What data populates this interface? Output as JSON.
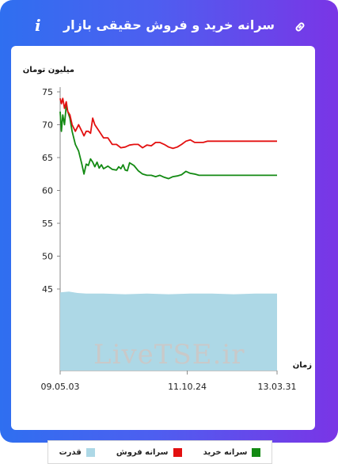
{
  "header": {
    "title": "سرانه خرید و فروش حقیقی بازار",
    "info_icon": "info-icon",
    "link_icon": "link-icon"
  },
  "watermark": "LiveTSE.ir",
  "chart_data": {
    "type": "line",
    "ylabel": "میلیون تومان",
    "xlabel": "زمان",
    "y_ticks": [
      45,
      50,
      55,
      60,
      65,
      70,
      75
    ],
    "x_ticks": [
      "09.05.03",
      "11.10.24",
      "13.03.31"
    ],
    "grid": false,
    "legend_position": "bottom",
    "series": [
      {
        "name": "سرانه خرید",
        "color": "#138a13",
        "points": [
          [
            0,
            72
          ],
          [
            0.6,
            69
          ],
          [
            1.2,
            71.5
          ],
          [
            2,
            70
          ],
          [
            2.8,
            73
          ],
          [
            3.5,
            72
          ],
          [
            4.5,
            71
          ],
          [
            5.5,
            69
          ],
          [
            7,
            67
          ],
          [
            8.5,
            66
          ],
          [
            10,
            64
          ],
          [
            11,
            62.5
          ],
          [
            12,
            64
          ],
          [
            13,
            63.8
          ],
          [
            14,
            64.8
          ],
          [
            15,
            64.3
          ],
          [
            16,
            63.6
          ],
          [
            17,
            64.3
          ],
          [
            18,
            63.4
          ],
          [
            19,
            63.9
          ],
          [
            20,
            63.3
          ],
          [
            22,
            63.7
          ],
          [
            24,
            63.2
          ],
          [
            26,
            63.1
          ],
          [
            27,
            63.6
          ],
          [
            28,
            63.3
          ],
          [
            29,
            63.9
          ],
          [
            30,
            63.1
          ],
          [
            31,
            63
          ],
          [
            32,
            64.2
          ],
          [
            34,
            63.8
          ],
          [
            36,
            63
          ],
          [
            38,
            62.5
          ],
          [
            40,
            62.3
          ],
          [
            42,
            62.3
          ],
          [
            44,
            62.1
          ],
          [
            46,
            62.3
          ],
          [
            48,
            62
          ],
          [
            50,
            61.8
          ],
          [
            52,
            62.1
          ],
          [
            54,
            62.2
          ],
          [
            56,
            62.4
          ],
          [
            58,
            62.9
          ],
          [
            60,
            62.6
          ],
          [
            62,
            62.5
          ],
          [
            64,
            62.3
          ],
          [
            66,
            62.3
          ],
          [
            68,
            62.3
          ],
          [
            70,
            62.3
          ],
          [
            72,
            62.3
          ],
          [
            74,
            62.3
          ],
          [
            76,
            62.3
          ],
          [
            78,
            62.3
          ],
          [
            80,
            62.3
          ],
          [
            82,
            62.3
          ],
          [
            84,
            62.3
          ],
          [
            86,
            62.3
          ],
          [
            88,
            62.3
          ],
          [
            90,
            62.3
          ],
          [
            92,
            62.3
          ],
          [
            94,
            62.3
          ],
          [
            96,
            62.3
          ],
          [
            98,
            62.3
          ],
          [
            100,
            62.3
          ]
        ]
      },
      {
        "name": "سرانه فروش",
        "color": "#e31010",
        "points": [
          [
            0,
            74
          ],
          [
            0.6,
            73.2
          ],
          [
            1.2,
            74
          ],
          [
            2,
            72.5
          ],
          [
            2.8,
            73.5
          ],
          [
            3.5,
            72
          ],
          [
            4.5,
            71.5
          ],
          [
            5.5,
            70
          ],
          [
            7,
            69
          ],
          [
            8.5,
            70
          ],
          [
            10,
            69
          ],
          [
            11,
            68.3
          ],
          [
            12,
            69
          ],
          [
            13,
            69
          ],
          [
            14,
            68.7
          ],
          [
            15,
            71
          ],
          [
            16,
            70
          ],
          [
            18,
            69
          ],
          [
            20,
            68
          ],
          [
            22,
            68
          ],
          [
            24,
            67
          ],
          [
            26,
            67
          ],
          [
            28,
            66.5
          ],
          [
            30,
            66.6
          ],
          [
            32,
            66.9
          ],
          [
            34,
            67
          ],
          [
            36,
            67
          ],
          [
            38,
            66.5
          ],
          [
            40,
            66.9
          ],
          [
            42,
            66.8
          ],
          [
            44,
            67.3
          ],
          [
            46,
            67.3
          ],
          [
            48,
            67
          ],
          [
            50,
            66.6
          ],
          [
            52,
            66.4
          ],
          [
            54,
            66.6
          ],
          [
            56,
            67
          ],
          [
            58,
            67.5
          ],
          [
            60,
            67.7
          ],
          [
            62,
            67.3
          ],
          [
            64,
            67.3
          ],
          [
            66,
            67.3
          ],
          [
            68,
            67.5
          ],
          [
            70,
            67.5
          ],
          [
            72,
            67.5
          ],
          [
            74,
            67.5
          ],
          [
            76,
            67.5
          ],
          [
            78,
            67.5
          ],
          [
            80,
            67.5
          ],
          [
            82,
            67.5
          ],
          [
            84,
            67.5
          ],
          [
            86,
            67.5
          ],
          [
            88,
            67.5
          ],
          [
            90,
            67.5
          ],
          [
            92,
            67.5
          ],
          [
            94,
            67.5
          ],
          [
            96,
            67.5
          ],
          [
            98,
            67.5
          ],
          [
            100,
            67.5
          ]
        ]
      },
      {
        "name": "قدرت",
        "color": "#add8e6",
        "type": "area",
        "points": [
          [
            0,
            44.5
          ],
          [
            4,
            44.6
          ],
          [
            8,
            44.4
          ],
          [
            12,
            44.3
          ],
          [
            20,
            44.3
          ],
          [
            30,
            44.2
          ],
          [
            40,
            44.3
          ],
          [
            50,
            44.2
          ],
          [
            60,
            44.3
          ],
          [
            70,
            44.3
          ],
          [
            80,
            44.2
          ],
          [
            90,
            44.3
          ],
          [
            100,
            44.3
          ]
        ]
      }
    ]
  },
  "legend": {
    "items": [
      {
        "label": "سرانه خرید",
        "color": "#138a13"
      },
      {
        "label": "سرانه فروش",
        "color": "#e31010"
      },
      {
        "label": "قدرت",
        "color": "#add8e6"
      }
    ]
  }
}
